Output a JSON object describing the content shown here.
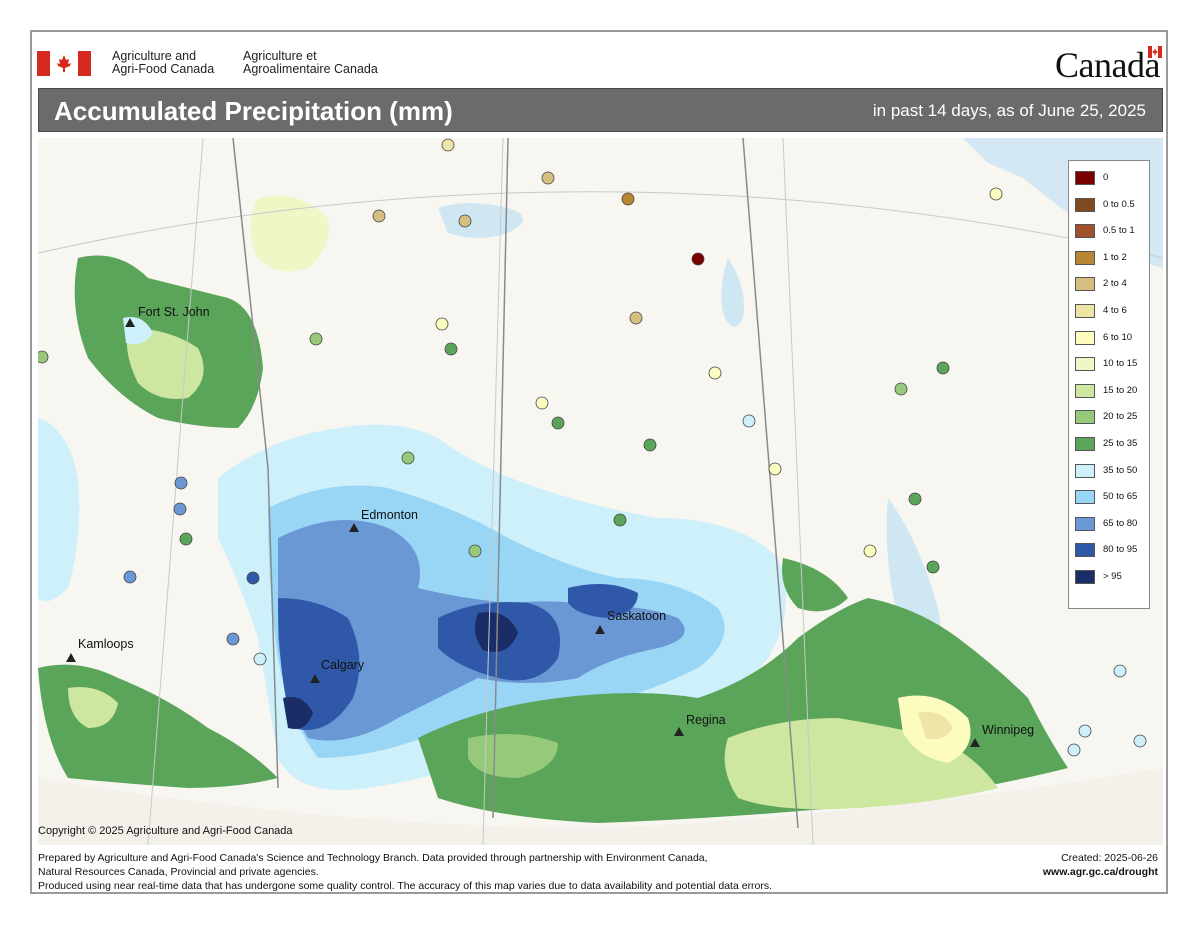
{
  "header": {
    "dept_en_line1": "Agriculture and",
    "dept_en_line2": "Agri-Food Canada",
    "dept_fr_line1": "Agriculture et",
    "dept_fr_line2": "Agroalimentaire Canada",
    "wordmark": "Canada"
  },
  "title": {
    "main": "Accumulated Precipitation (mm)",
    "subtitle": "in past 14 days, as of June 25, 2025"
  },
  "legend": [
    {
      "label": "0",
      "color": "#7a0000"
    },
    {
      "label": "0 to 0.5",
      "color": "#7f4a1f"
    },
    {
      "label": "0.5 to 1",
      "color": "#a0522d"
    },
    {
      "label": "1 to 2",
      "color": "#b88733"
    },
    {
      "label": "2 to 4",
      "color": "#d4bf80"
    },
    {
      "label": "4 to 6",
      "color": "#ede4a6"
    },
    {
      "label": "6 to 10",
      "color": "#fdfcbf"
    },
    {
      "label": "10 to 15",
      "color": "#eef7c6"
    },
    {
      "label": "15 to 20",
      "color": "#cde6a0"
    },
    {
      "label": "20 to 25",
      "color": "#97c97a"
    },
    {
      "label": "25 to 35",
      "color": "#5aa55a"
    },
    {
      "label": "35 to 50",
      "color": "#cdf0fb"
    },
    {
      "label": "50 to 65",
      "color": "#99d6f5"
    },
    {
      "label": "65 to 80",
      "color": "#6a98d4"
    },
    {
      "label": "80 to 95",
      "color": "#2f59a8"
    },
    {
      "label": "> 95",
      "color": "#1b2d66"
    }
  ],
  "cities": {
    "fort_st_john": "Fort St. John",
    "edmonton": "Edmonton",
    "kamloops": "Kamloops",
    "calgary": "Calgary",
    "saskatoon": "Saskatoon",
    "regina": "Regina",
    "winnipeg": "Winnipeg"
  },
  "footer": {
    "copyright": "Copyright © 2025 Agriculture and Agri-Food Canada",
    "line1": "Prepared by Agriculture and Agri-Food Canada's Science and Technology Branch. Data provided through partnership with Environment Canada,",
    "line2": "Natural Resources Canada, Provincial and private agencies.",
    "line3": "Produced using near real-time data that has undergone some quality control. The accuracy of this map varies due to data availability and potential data errors.",
    "created": "Created: 2025-06-26",
    "url": "www.agr.gc.ca/drought"
  }
}
